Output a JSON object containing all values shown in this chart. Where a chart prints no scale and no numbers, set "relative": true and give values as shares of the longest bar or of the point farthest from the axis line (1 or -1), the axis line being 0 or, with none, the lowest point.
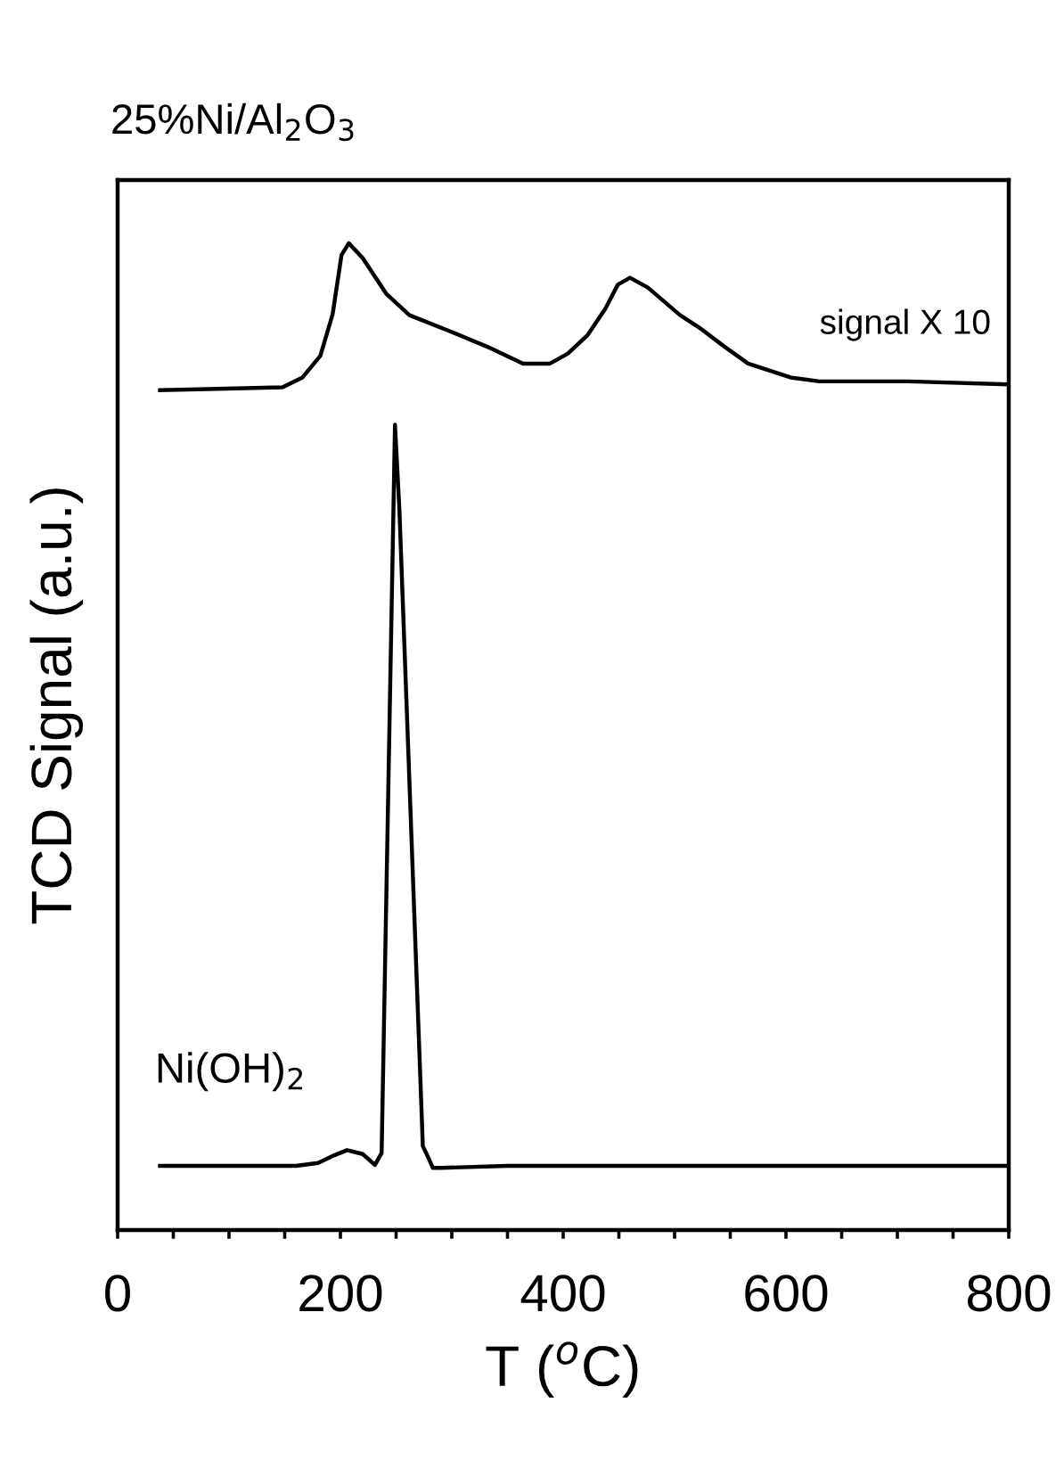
{
  "chart_data": {
    "type": "line",
    "relative": true,
    "xlabel": "T ($^{o}$C)",
    "ylabel": "TCD Signal (a.u.)",
    "xlim": [
      0,
      800
    ],
    "xticks": [
      0,
      {
        "value": 50,
        "label": null
      },
      {
        "value": 100,
        "label": null
      },
      {
        "value": 150,
        "label": null
      },
      200,
      {
        "value": 250,
        "label": null
      },
      {
        "value": 300,
        "label": null
      },
      {
        "value": 350,
        "label": null
      },
      400,
      {
        "value": 450,
        "label": null
      },
      {
        "value": 500,
        "label": null
      },
      {
        "value": 550,
        "label": null
      },
      600,
      {
        "value": 650,
        "label": null
      },
      {
        "value": 700,
        "label": null
      },
      {
        "value": 750,
        "label": null
      },
      800
    ],
    "grid": false,
    "legend": false,
    "marker": "none",
    "line_style": "solid",
    "annotations": [
      "signal X 10"
    ],
    "series": [
      {
        "name": "25%Ni/Al$_{2}$O$_{3}$",
        "color": "#000000",
        "x": [
          38,
          148,
          166,
          182,
          193,
          201,
          207.5,
          220,
          241,
          262,
          300,
          332,
          364,
          388,
          404,
          422,
          438,
          449,
          460,
          476,
          505,
          524,
          545,
          566,
          604,
          630,
          710,
          798
        ],
        "values": [
          0.851,
          0.854,
          0.864,
          0.886,
          0.928,
          0.988,
          1.0,
          0.985,
          0.949,
          0.927,
          0.91,
          0.895,
          0.878,
          0.878,
          0.888,
          0.907,
          0.934,
          0.958,
          0.965,
          0.955,
          0.927,
          0.913,
          0.895,
          0.878,
          0.864,
          0.86,
          0.86,
          0.857
        ]
      },
      {
        "name": "Ni(OH)$_{2}$",
        "color": "#000000",
        "x": [
          38,
          160,
          180,
          195,
          206,
          220,
          231,
          237,
          249,
          253,
          274,
          279.5,
          283,
          291,
          350,
          500,
          650,
          798
        ],
        "values": [
          0.065,
          0.065,
          0.068,
          0.076,
          0.081,
          0.077,
          0.066,
          0.078,
          0.816,
          0.729,
          0.085,
          0.072,
          0.063,
          0.063,
          0.065,
          0.065,
          0.065,
          0.065
        ]
      }
    ]
  }
}
